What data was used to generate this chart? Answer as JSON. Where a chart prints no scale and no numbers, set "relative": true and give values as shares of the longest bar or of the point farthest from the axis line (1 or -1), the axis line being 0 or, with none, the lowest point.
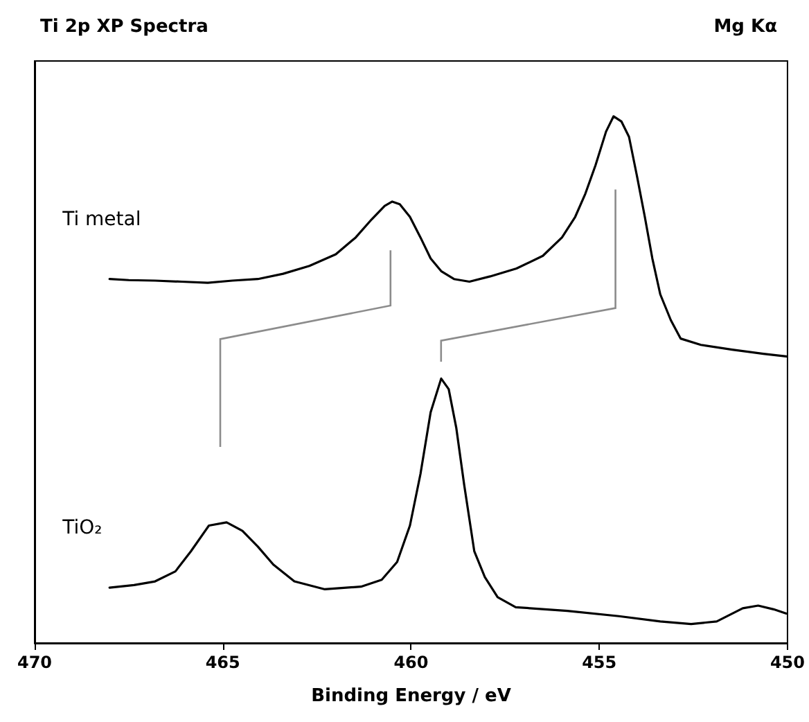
{
  "chart_data": {
    "type": "line",
    "title": "Ti 2p XP Spectra",
    "subtitle": "Mg Kα",
    "xlabel": "Binding Energy / eV",
    "relative": true,
    "xlim": [
      470,
      450
    ],
    "xticks": [
      470,
      465,
      460,
      455,
      450
    ],
    "grid": false,
    "legend": false,
    "marker": "none",
    "line_style": "solid",
    "series": [
      {
        "name": "Ti metal",
        "color": "#000000",
        "x": [
          468.01,
          467.5,
          466.8,
          466.1,
          465.4,
          464.75,
          464.07,
          463.4,
          462.7,
          462.0,
          461.47,
          461.05,
          460.7,
          460.5,
          460.3,
          460.03,
          459.75,
          459.48,
          459.2,
          458.86,
          458.45,
          457.9,
          457.2,
          456.5,
          455.99,
          455.64,
          455.37,
          455.1,
          454.82,
          454.62,
          454.41,
          454.21,
          454.0,
          453.79,
          453.59,
          453.38,
          453.1,
          452.84,
          452.3,
          451.47,
          450.64,
          450.03
        ],
        "values": [
          0.691,
          0.689,
          0.688,
          0.686,
          0.684,
          0.688,
          0.691,
          0.701,
          0.716,
          0.738,
          0.77,
          0.804,
          0.83,
          0.838,
          0.833,
          0.809,
          0.77,
          0.73,
          0.706,
          0.691,
          0.686,
          0.696,
          0.711,
          0.735,
          0.77,
          0.809,
          0.853,
          0.907,
          0.971,
          1.0,
          0.99,
          0.961,
          0.887,
          0.809,
          0.73,
          0.662,
          0.613,
          0.578,
          0.566,
          0.557,
          0.549,
          0.544
        ]
      },
      {
        "name": "TiO₂",
        "color": "#000000",
        "x": [
          468.01,
          467.36,
          466.8,
          466.26,
          465.85,
          465.37,
          464.9,
          464.48,
          464.07,
          463.66,
          463.1,
          462.29,
          461.33,
          460.78,
          460.37,
          460.03,
          459.75,
          459.48,
          459.2,
          459.0,
          458.8,
          458.59,
          458.32,
          458.04,
          457.7,
          457.22,
          455.85,
          454.48,
          453.38,
          452.56,
          451.88,
          451.19,
          450.78,
          450.37,
          450.03
        ],
        "values": [
          0.105,
          0.11,
          0.117,
          0.136,
          0.174,
          0.223,
          0.229,
          0.213,
          0.183,
          0.149,
          0.117,
          0.102,
          0.107,
          0.12,
          0.154,
          0.223,
          0.321,
          0.438,
          0.502,
          0.482,
          0.409,
          0.301,
          0.174,
          0.125,
          0.087,
          0.068,
          0.061,
          0.051,
          0.041,
          0.036,
          0.041,
          0.066,
          0.071,
          0.064,
          0.056
        ]
      }
    ]
  }
}
